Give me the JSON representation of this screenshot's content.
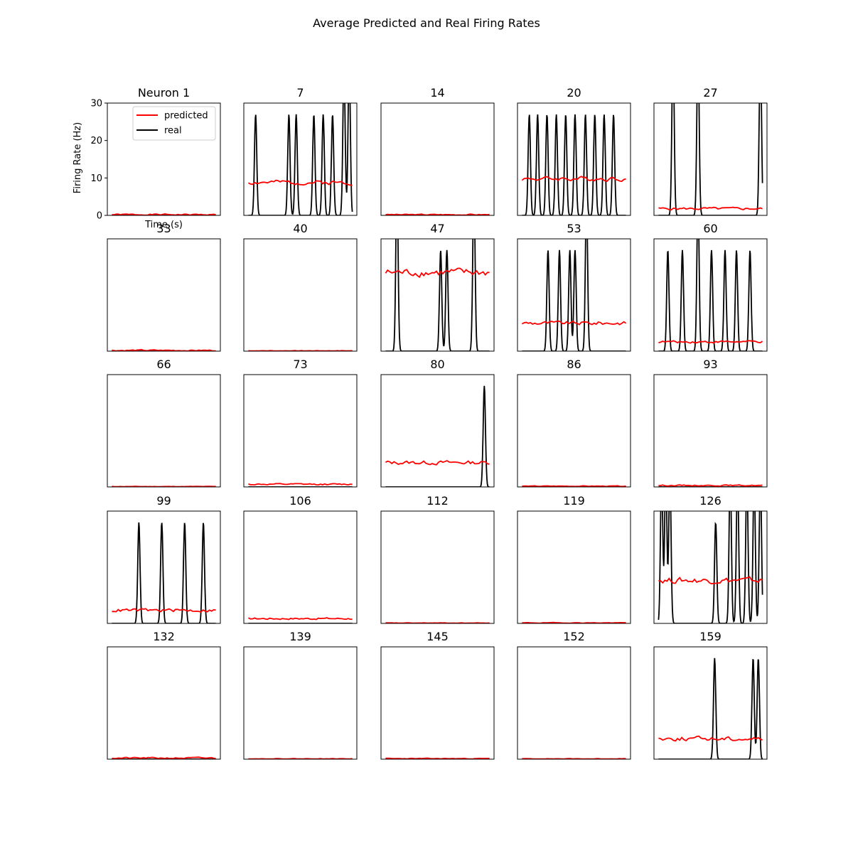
{
  "figure": {
    "title": "Average Predicted and Real Firing Rates",
    "colors": {
      "predicted": "#ff0000",
      "real": "#000000",
      "axes": "#000000",
      "background": "#ffffff"
    }
  },
  "chart_data": {
    "type": "line",
    "title": "Average Predicted and Real Firing Rates",
    "layout": "5x5 grid of small multiples",
    "shared_axes": {
      "ylabel": "Firing Rate (Hz)",
      "xlabel": "Time (s)",
      "ylim": [
        0,
        30
      ],
      "yticks": [
        0,
        10,
        20,
        30
      ],
      "x_points": 50,
      "ticks_shown_on": "first panel only"
    },
    "legend": {
      "entries": [
        "predicted",
        "real"
      ],
      "placement": "upper right of first panel"
    },
    "series_names": [
      "predicted",
      "real"
    ],
    "panels": [
      {
        "title": "Neuron 1",
        "predicted": {
          "level": 0.2,
          "noise": 0.15,
          "seed": 1
        },
        "real": {
          "baseline": 0,
          "peaks": []
        }
      },
      {
        "title": "7",
        "predicted": {
          "level": 8.8,
          "noise": 0.45,
          "seed": 2
        },
        "real": {
          "baseline": 0,
          "peaks": [
            [
              0.07,
              27
            ],
            [
              0.39,
              27
            ],
            [
              0.46,
              27
            ],
            [
              0.63,
              27
            ],
            [
              0.72,
              27
            ],
            [
              0.81,
              27
            ],
            [
              0.92,
              40
            ],
            [
              0.97,
              40
            ]
          ]
        }
      },
      {
        "title": "14",
        "predicted": {
          "level": 0.2,
          "noise": 0.12,
          "seed": 3
        },
        "real": {
          "baseline": 0,
          "peaks": []
        }
      },
      {
        "title": "20",
        "predicted": {
          "level": 9.8,
          "noise": 0.45,
          "seed": 4
        },
        "real": {
          "baseline": 0,
          "peaks": [
            [
              0.07,
              27
            ],
            [
              0.15,
              27
            ],
            [
              0.24,
              27
            ],
            [
              0.33,
              27
            ],
            [
              0.42,
              27
            ],
            [
              0.51,
              27
            ],
            [
              0.61,
              27
            ],
            [
              0.7,
              27
            ],
            [
              0.79,
              27
            ],
            [
              0.88,
              27
            ]
          ]
        }
      },
      {
        "title": "27",
        "predicted": {
          "level": 1.8,
          "noise": 0.25,
          "seed": 5
        },
        "real": {
          "baseline": 0,
          "peaks": [
            [
              0.14,
              45
            ],
            [
              0.38,
              45
            ],
            [
              0.98,
              45
            ]
          ]
        }
      },
      {
        "title": "33",
        "predicted": {
          "level": 0.2,
          "noise": 0.15,
          "seed": 6
        },
        "real": {
          "baseline": 0,
          "peaks": []
        }
      },
      {
        "title": "40",
        "predicted": {
          "level": 0.1,
          "noise": 0.06,
          "seed": 7
        },
        "real": {
          "baseline": 0,
          "peaks": []
        }
      },
      {
        "title": "47",
        "predicted": {
          "level": 21.0,
          "noise": 0.8,
          "seed": 8
        },
        "real": {
          "baseline": 0,
          "peaks": [
            [
              0.11,
              45
            ],
            [
              0.53,
              27
            ],
            [
              0.59,
              27
            ],
            [
              0.85,
              45
            ]
          ]
        }
      },
      {
        "title": "53",
        "predicted": {
          "level": 7.5,
          "noise": 0.4,
          "seed": 9
        },
        "real": {
          "baseline": 0,
          "peaks": [
            [
              0.25,
              27
            ],
            [
              0.36,
              27
            ],
            [
              0.46,
              27
            ],
            [
              0.51,
              27
            ],
            [
              0.62,
              40
            ]
          ]
        }
      },
      {
        "title": "60",
        "predicted": {
          "level": 2.5,
          "noise": 0.25,
          "seed": 10
        },
        "real": {
          "baseline": 0,
          "peaks": [
            [
              0.09,
              27
            ],
            [
              0.23,
              27
            ],
            [
              0.38,
              40
            ],
            [
              0.51,
              27
            ],
            [
              0.64,
              27
            ],
            [
              0.75,
              27
            ],
            [
              0.88,
              27
            ]
          ]
        }
      },
      {
        "title": "66",
        "predicted": {
          "level": 0.1,
          "noise": 0.05,
          "seed": 11
        },
        "real": {
          "baseline": 0,
          "peaks": []
        }
      },
      {
        "title": "73",
        "predicted": {
          "level": 0.7,
          "noise": 0.15,
          "seed": 12
        },
        "real": {
          "baseline": 0,
          "peaks": []
        }
      },
      {
        "title": "80",
        "predicted": {
          "level": 6.5,
          "noise": 0.4,
          "seed": 13
        },
        "real": {
          "baseline": 0,
          "peaks": [
            [
              0.95,
              27
            ]
          ]
        },
        "real_end": 4.5
      },
      {
        "title": "86",
        "predicted": {
          "level": 0.2,
          "noise": 0.08,
          "seed": 14
        },
        "real": {
          "baseline": 0,
          "peaks": []
        }
      },
      {
        "title": "93",
        "predicted": {
          "level": 0.4,
          "noise": 0.12,
          "seed": 15
        },
        "real": {
          "baseline": 0,
          "peaks": []
        }
      },
      {
        "title": "99",
        "predicted": {
          "level": 3.5,
          "noise": 0.35,
          "seed": 16
        },
        "real": {
          "baseline": 0,
          "peaks": [
            [
              0.26,
              27
            ],
            [
              0.48,
              27
            ],
            [
              0.7,
              27
            ],
            [
              0.88,
              27
            ]
          ]
        }
      },
      {
        "title": "106",
        "predicted": {
          "level": 1.3,
          "noise": 0.2,
          "seed": 17
        },
        "real": {
          "baseline": 0,
          "peaks": []
        }
      },
      {
        "title": "112",
        "predicted": {
          "level": 0.1,
          "noise": 0.05,
          "seed": 18
        },
        "real": {
          "baseline": 0,
          "peaks": []
        }
      },
      {
        "title": "119",
        "predicted": {
          "level": 0.15,
          "noise": 0.06,
          "seed": 19
        },
        "real": {
          "baseline": 0,
          "peaks": []
        }
      },
      {
        "title": "126",
        "predicted": {
          "level": 11.5,
          "noise": 0.6,
          "seed": 20
        },
        "real": {
          "baseline": 0,
          "peaks": [
            [
              0.03,
              40
            ],
            [
              0.07,
              40
            ],
            [
              0.11,
              40
            ],
            [
              0.55,
              27
            ],
            [
              0.69,
              40
            ],
            [
              0.76,
              40
            ],
            [
              0.85,
              40
            ],
            [
              0.92,
              40
            ],
            [
              0.98,
              40
            ]
          ]
        }
      },
      {
        "title": "132",
        "predicted": {
          "level": 0.3,
          "noise": 0.15,
          "seed": 21
        },
        "real": {
          "baseline": 0,
          "peaks": []
        }
      },
      {
        "title": "139",
        "predicted": {
          "level": 0.1,
          "noise": 0.06,
          "seed": 22
        },
        "real": {
          "baseline": 0,
          "peaks": []
        }
      },
      {
        "title": "145",
        "predicted": {
          "level": 0.15,
          "noise": 0.08,
          "seed": 23
        },
        "real": {
          "baseline": 0,
          "peaks": []
        }
      },
      {
        "title": "152",
        "predicted": {
          "level": 0.1,
          "noise": 0.06,
          "seed": 24
        },
        "real": {
          "baseline": 0,
          "peaks": []
        }
      },
      {
        "title": "159",
        "predicted": {
          "level": 5.5,
          "noise": 0.45,
          "seed": 25
        },
        "real": {
          "baseline": 0,
          "peaks": [
            [
              0.54,
              27
            ],
            [
              0.91,
              27
            ],
            [
              0.96,
              27
            ]
          ]
        },
        "real_end": 15
      }
    ]
  }
}
